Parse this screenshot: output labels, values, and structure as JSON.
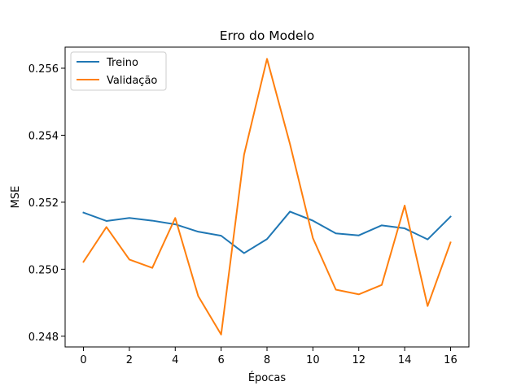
{
  "chart_data": {
    "type": "line",
    "title": "Erro do Modelo",
    "xlabel": "Épocas",
    "ylabel": "MSE",
    "x": [
      0,
      1,
      2,
      3,
      4,
      5,
      6,
      7,
      8,
      9,
      10,
      11,
      12,
      13,
      14,
      15,
      16
    ],
    "xlim": [
      -0.8,
      16.8
    ],
    "ylim": [
      0.24768,
      0.25663
    ],
    "xticks": [
      0,
      2,
      4,
      6,
      8,
      10,
      12,
      14,
      16
    ],
    "xtick_labels": [
      "0",
      "2",
      "4",
      "6",
      "8",
      "10",
      "12",
      "14",
      "16"
    ],
    "yticks": [
      0.248,
      0.25,
      0.252,
      0.254,
      0.256
    ],
    "ytick_labels": [
      "0.248",
      "0.250",
      "0.252",
      "0.254",
      "0.256"
    ],
    "grid": false,
    "legend_position": "top-left",
    "series": [
      {
        "name": "Treino",
        "color": "#1f77b4",
        "values": [
          0.25169,
          0.25144,
          0.25153,
          0.25145,
          0.25134,
          0.25112,
          0.251,
          0.25048,
          0.2509,
          0.25172,
          0.25145,
          0.25107,
          0.25101,
          0.25131,
          0.25122,
          0.25089,
          0.25157
        ]
      },
      {
        "name": "Validação",
        "color": "#ff7f0e",
        "values": [
          0.25022,
          0.25126,
          0.25029,
          0.25004,
          0.25153,
          0.2492,
          0.24805,
          0.25342,
          0.25628,
          0.25374,
          0.25093,
          0.24939,
          0.24925,
          0.24953,
          0.2519,
          0.2489,
          0.2508
        ]
      }
    ]
  }
}
